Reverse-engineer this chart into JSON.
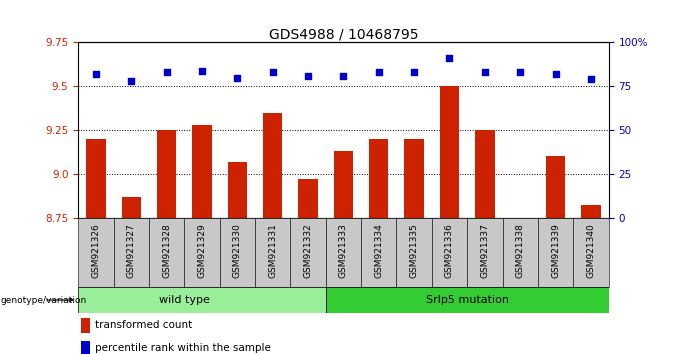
{
  "title": "GDS4988 / 10468795",
  "samples": [
    "GSM921326",
    "GSM921327",
    "GSM921328",
    "GSM921329",
    "GSM921330",
    "GSM921331",
    "GSM921332",
    "GSM921333",
    "GSM921334",
    "GSM921335",
    "GSM921336",
    "GSM921337",
    "GSM921338",
    "GSM921339",
    "GSM921340"
  ],
  "bar_values": [
    9.2,
    8.87,
    9.25,
    9.28,
    9.07,
    9.35,
    8.97,
    9.13,
    9.2,
    9.2,
    9.5,
    9.25,
    8.75,
    9.1,
    8.82
  ],
  "dot_values": [
    82,
    78,
    83,
    84,
    80,
    83,
    81,
    81,
    83,
    83,
    91,
    83,
    83,
    82,
    79
  ],
  "ymin": 8.75,
  "ymax": 9.75,
  "y2min": 0,
  "y2max": 100,
  "yticks": [
    8.75,
    9.0,
    9.25,
    9.5,
    9.75
  ],
  "y2ticks": [
    0,
    25,
    50,
    75,
    100
  ],
  "y2ticklabels": [
    "0",
    "25",
    "50",
    "75",
    "100%"
  ],
  "grid_lines": [
    9.0,
    9.25,
    9.5
  ],
  "bar_color": "#cc2200",
  "dot_color": "#0000cc",
  "n_wild_type": 7,
  "wild_type_label": "wild type",
  "mutation_label": "Srlp5 mutation",
  "group_label": "genotype/variation",
  "legend_bar_label": "transformed count",
  "legend_dot_label": "percentile rank within the sample",
  "ytick_color": "#cc2200",
  "y2tick_color": "#0000cc",
  "wild_type_color": "#99ee99",
  "mutation_color": "#33cc33",
  "xtick_bg_color": "#c8c8c8",
  "title_fontsize": 10,
  "tick_fontsize": 7.5,
  "xtick_fontsize": 6.5,
  "label_fontsize": 8
}
